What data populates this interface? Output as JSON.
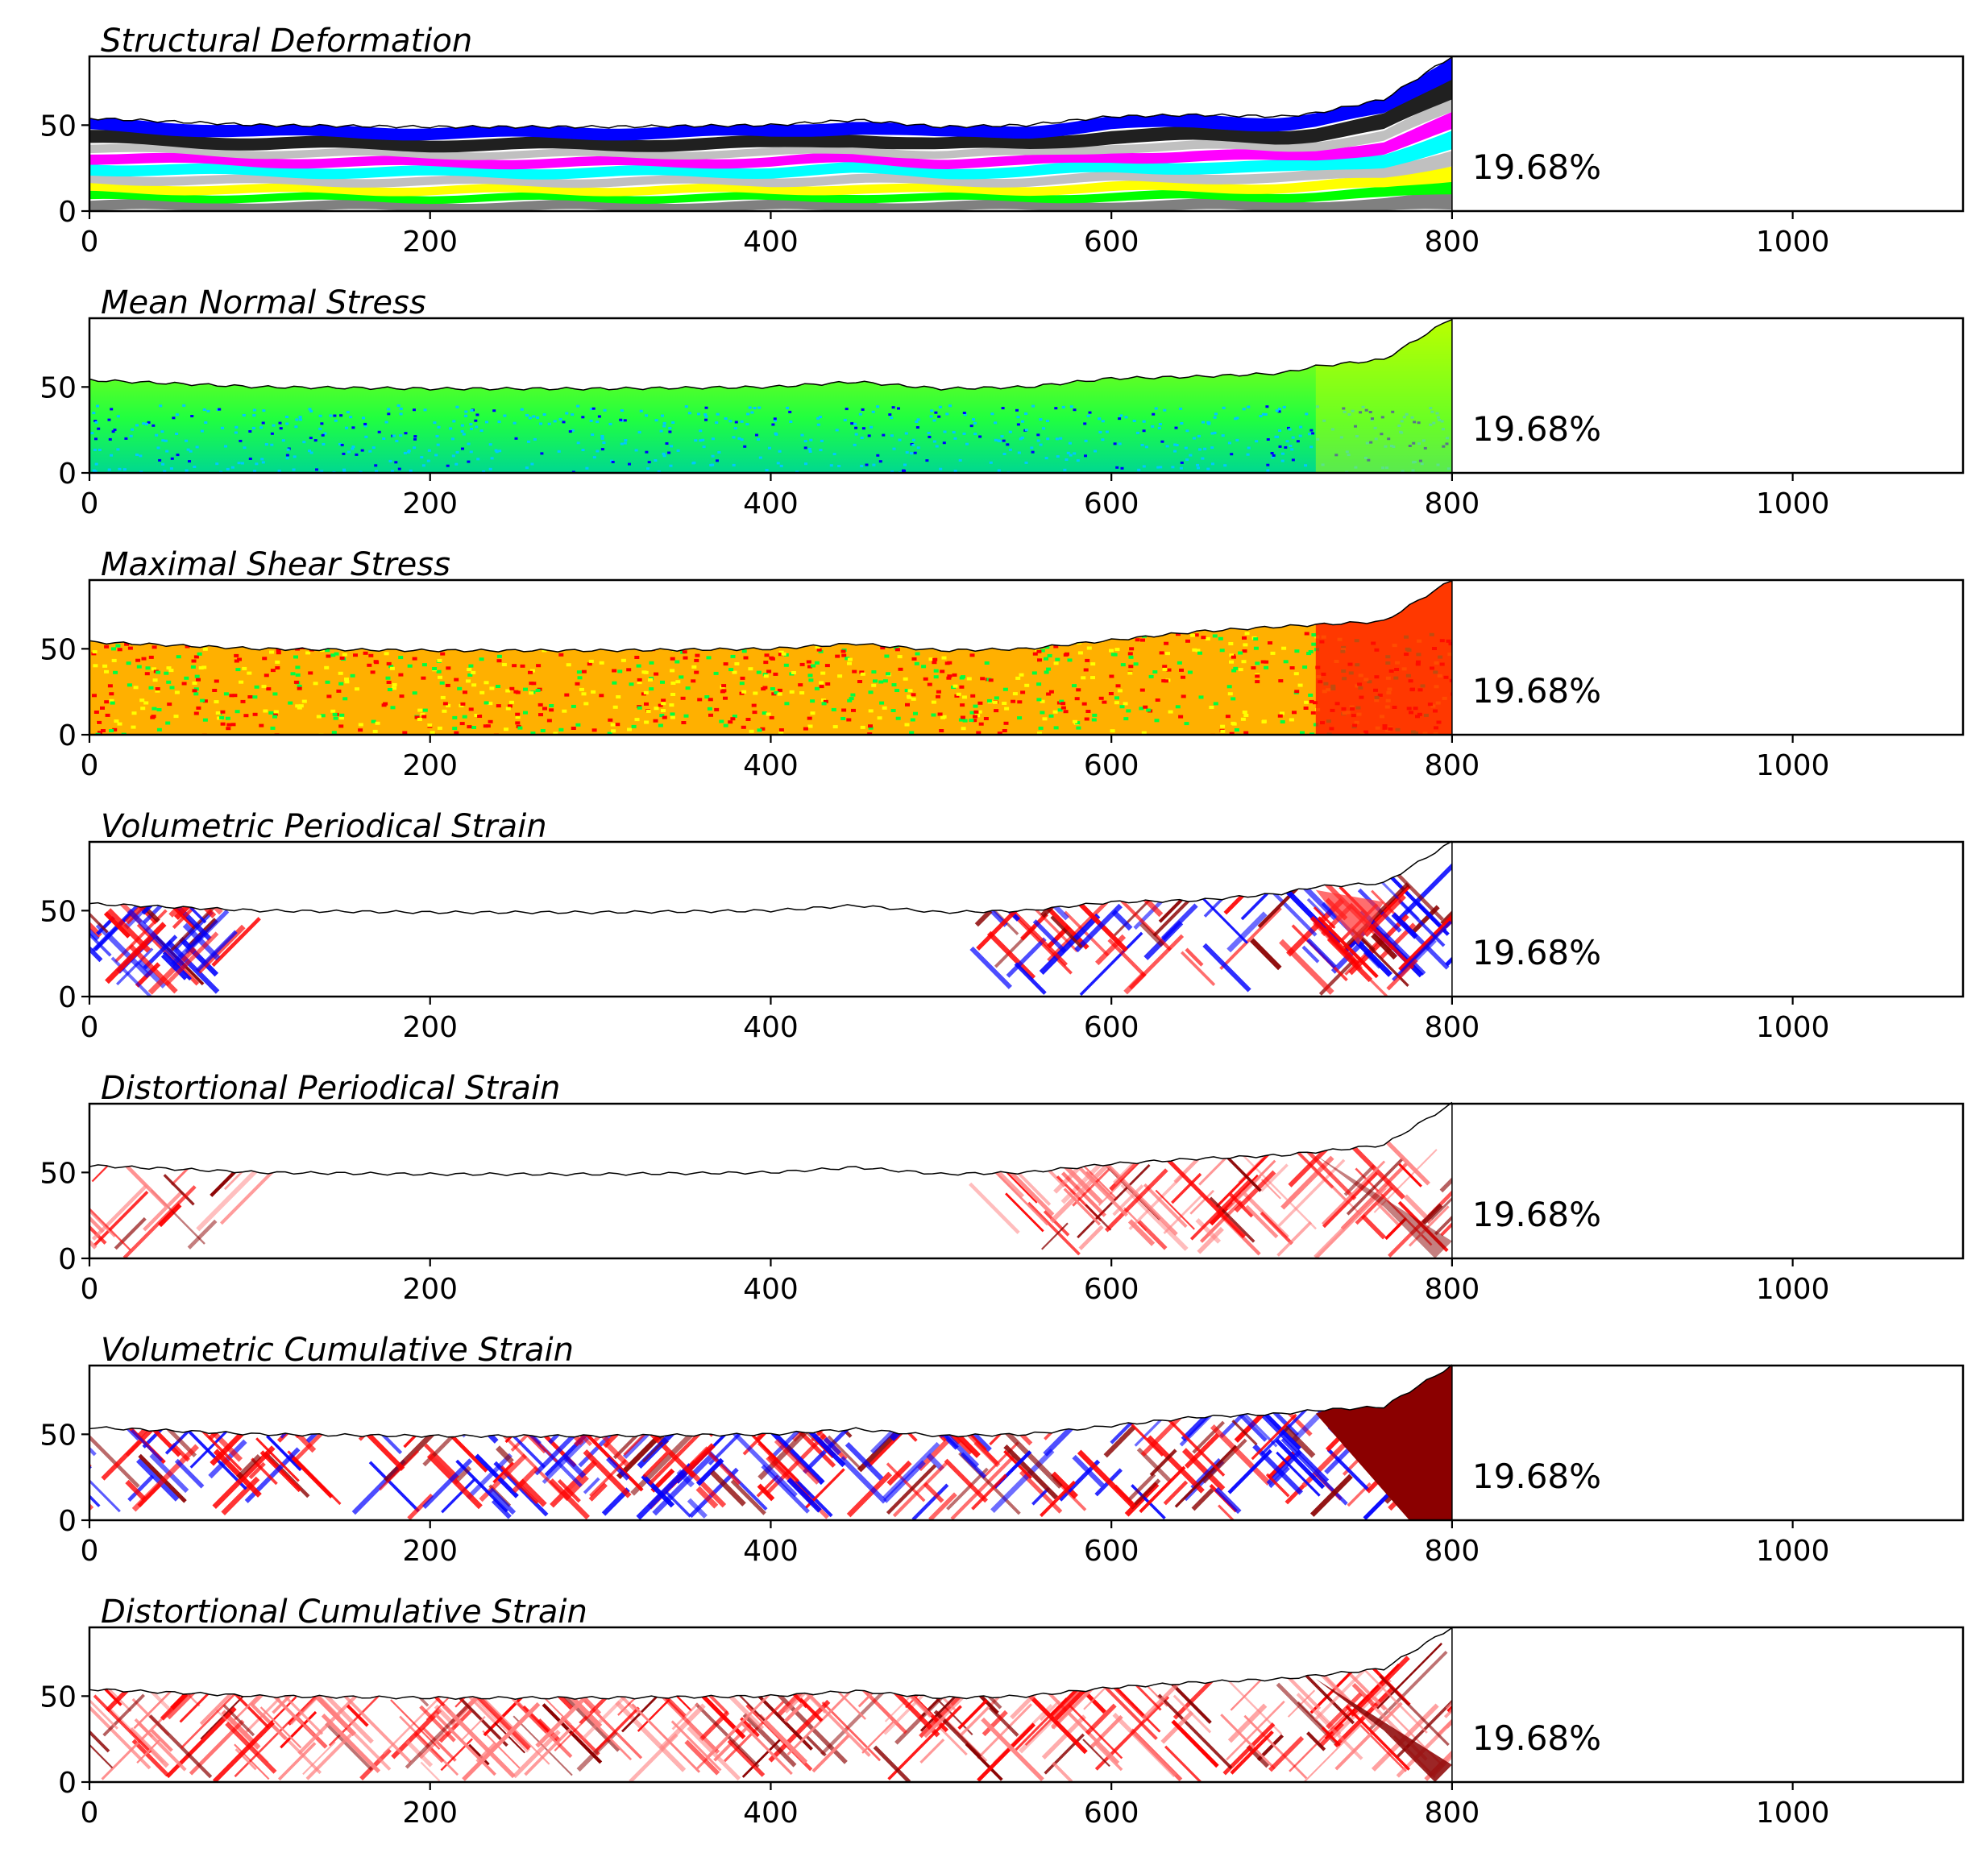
{
  "figure": {
    "colors": {
      "structural_layers": [
        "#808080",
        "#00ff00",
        "#ffff00",
        "#c0c0c0",
        "#00ffff",
        "#ff00ff",
        "#c0c0c0",
        "#202020",
        "#0000ff"
      ],
      "mean_normal_stress": [
        "#0000ff",
        "#00c8ff",
        "#00ff80",
        "#40ff00",
        "#c0ff00"
      ],
      "maximal_shear_stress": [
        "#00ff40",
        "#ffff00",
        "#ff8000",
        "#ff0000"
      ],
      "diverging": [
        "#00008b",
        "#0000ff",
        "#ffffff",
        "#ff0000",
        "#8b0000"
      ],
      "sequential_reds": [
        "#ffffff",
        "#ff8080",
        "#ff0000",
        "#8b0000"
      ],
      "surface_line": "#000000"
    }
  },
  "chart_data": [
    {
      "type": "heatmap",
      "title": "Structural Deformation",
      "annotation": "19.68%",
      "xlim": [
        0,
        1100
      ],
      "ylim": [
        0,
        90
      ],
      "xticks": [
        "0",
        "200",
        "400",
        "600",
        "800",
        "1000"
      ],
      "yticks": [
        "0",
        "50"
      ],
      "colormap": "structural_layers",
      "surface": {
        "x": [
          0,
          50,
          100,
          200,
          300,
          400,
          450,
          500,
          550,
          600,
          650,
          700,
          720,
          760,
          800
        ],
        "y": [
          54,
          52,
          50,
          49,
          49,
          50,
          53,
          49,
          50,
          55,
          56,
          55,
          57,
          65,
          90
        ]
      }
    },
    {
      "type": "heatmap",
      "title": "Mean Normal Stress",
      "annotation": "19.68%",
      "xlim": [
        0,
        1100
      ],
      "ylim": [
        0,
        90
      ],
      "xticks": [
        "0",
        "200",
        "400",
        "600",
        "800",
        "1000"
      ],
      "yticks": [
        "0",
        "50"
      ],
      "colormap": "mean_normal_stress",
      "surface": {
        "x": [
          0,
          50,
          100,
          200,
          300,
          400,
          450,
          500,
          550,
          600,
          650,
          700,
          720,
          760,
          800
        ],
        "y": [
          54,
          52,
          50,
          49,
          49,
          50,
          53,
          49,
          50,
          55,
          56,
          58,
          62,
          66,
          90
        ]
      }
    },
    {
      "type": "heatmap",
      "title": "Maximal Shear Stress",
      "annotation": "19.68%",
      "xlim": [
        0,
        1100
      ],
      "ylim": [
        0,
        90
      ],
      "xticks": [
        "0",
        "200",
        "400",
        "600",
        "800",
        "1000"
      ],
      "yticks": [
        "0",
        "50"
      ],
      "colormap": "maximal_shear_stress",
      "surface": {
        "x": [
          0,
          50,
          100,
          200,
          300,
          400,
          450,
          500,
          550,
          600,
          650,
          700,
          720,
          760,
          800
        ],
        "y": [
          54,
          52,
          50,
          49,
          49,
          50,
          53,
          49,
          50,
          55,
          60,
          63,
          64,
          66,
          90
        ]
      }
    },
    {
      "type": "heatmap",
      "title": "Volumetric Periodical Strain",
      "annotation": "19.68%",
      "xlim": [
        0,
        1100
      ],
      "ylim": [
        0,
        90
      ],
      "xticks": [
        "0",
        "200",
        "400",
        "600",
        "800",
        "1000"
      ],
      "yticks": [
        "0",
        "50"
      ],
      "colormap": "diverging",
      "surface": {
        "x": [
          0,
          50,
          100,
          200,
          300,
          400,
          450,
          500,
          550,
          600,
          650,
          700,
          720,
          760,
          800
        ],
        "y": [
          54,
          52,
          50,
          49,
          49,
          50,
          53,
          49,
          50,
          55,
          56,
          60,
          64,
          66,
          90
        ]
      }
    },
    {
      "type": "heatmap",
      "title": "Distortional Periodical Strain",
      "annotation": "19.68%",
      "xlim": [
        0,
        1100
      ],
      "ylim": [
        0,
        90
      ],
      "xticks": [
        "0",
        "200",
        "400",
        "600",
        "800",
        "1000"
      ],
      "yticks": [
        "0",
        "50"
      ],
      "colormap": "sequential_reds",
      "surface": {
        "x": [
          0,
          50,
          100,
          200,
          300,
          400,
          450,
          500,
          550,
          600,
          650,
          700,
          720,
          760,
          800
        ],
        "y": [
          54,
          52,
          50,
          49,
          49,
          50,
          53,
          49,
          50,
          55,
          58,
          60,
          62,
          66,
          90
        ]
      }
    },
    {
      "type": "heatmap",
      "title": "Volumetric Cumulative Strain",
      "annotation": "19.68%",
      "xlim": [
        0,
        1100
      ],
      "ylim": [
        0,
        90
      ],
      "xticks": [
        "0",
        "200",
        "400",
        "600",
        "800",
        "1000"
      ],
      "yticks": [
        "0",
        "50"
      ],
      "colormap": "diverging",
      "surface": {
        "x": [
          0,
          50,
          100,
          200,
          300,
          400,
          450,
          500,
          550,
          600,
          650,
          700,
          720,
          760,
          800
        ],
        "y": [
          54,
          52,
          50,
          49,
          49,
          50,
          53,
          49,
          50,
          55,
          60,
          62,
          64,
          66,
          90
        ]
      }
    },
    {
      "type": "heatmap",
      "title": "Distortional Cumulative Strain",
      "annotation": "19.68%",
      "xlim": [
        0,
        1100
      ],
      "ylim": [
        0,
        90
      ],
      "xticks": [
        "0",
        "200",
        "400",
        "600",
        "800",
        "1000"
      ],
      "yticks": [
        "0",
        "50"
      ],
      "colormap": "sequential_reds",
      "surface": {
        "x": [
          0,
          50,
          100,
          200,
          300,
          400,
          450,
          500,
          550,
          600,
          650,
          700,
          720,
          760,
          800
        ],
        "y": [
          54,
          52,
          50,
          49,
          49,
          50,
          53,
          49,
          50,
          55,
          58,
          60,
          62,
          66,
          90
        ]
      }
    }
  ]
}
